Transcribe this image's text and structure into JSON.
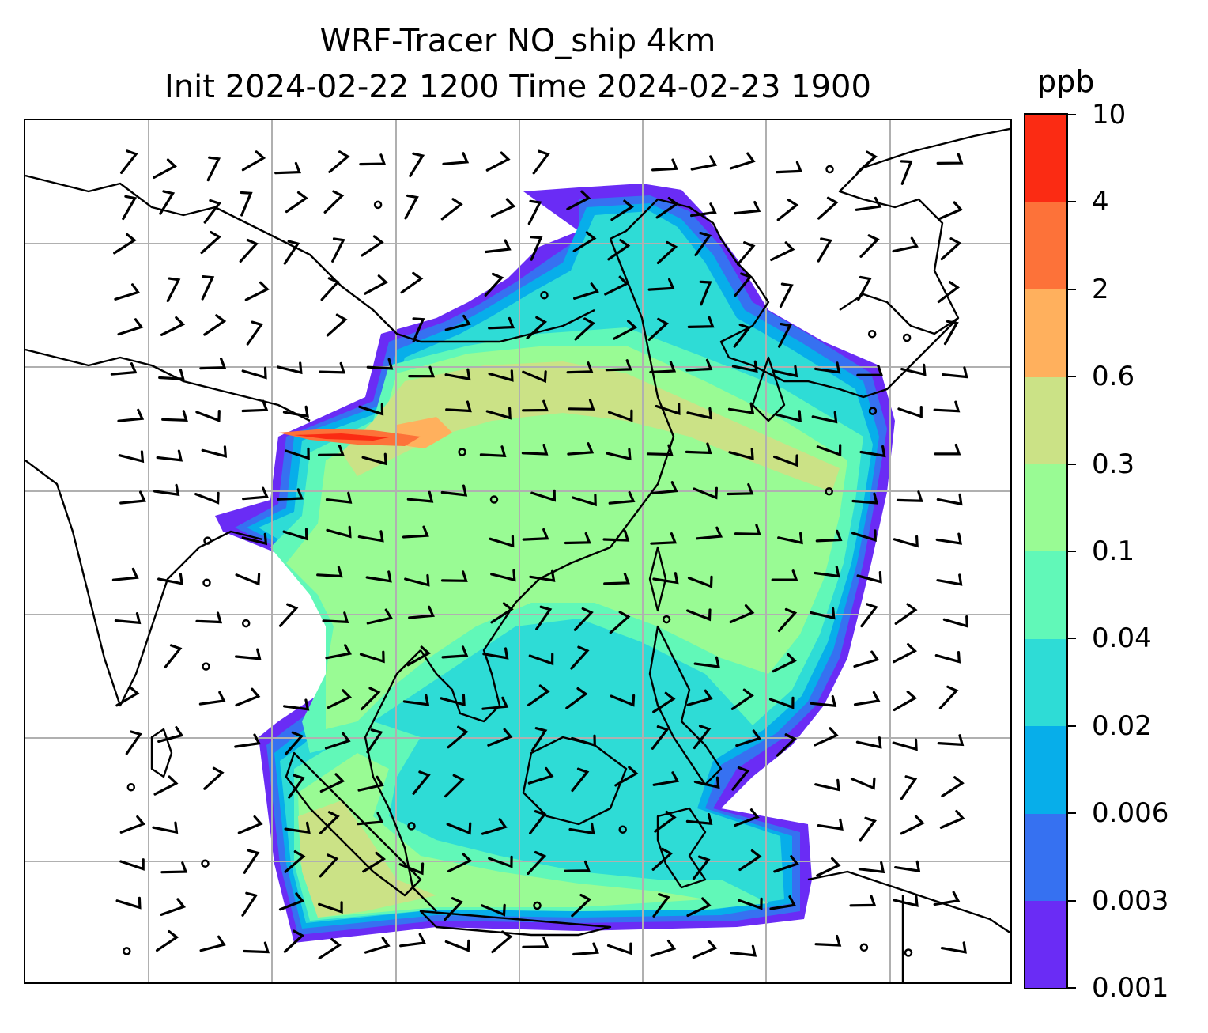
{
  "figure": {
    "title_line1": "WRF-Tracer NO_ship 4km",
    "title_line2": "Init 2024-02-22 1200 Time 2024-02-23 1900"
  },
  "colorbar": {
    "unit": "ppb",
    "levels": [
      "0.001",
      "0.003",
      "0.006",
      "0.02",
      "0.04",
      "0.1",
      "0.3",
      "0.6",
      "2",
      "4",
      "10"
    ],
    "colors": [
      "#6a2cf5",
      "#3671f1",
      "#07aeea",
      "#2edcd6",
      "#61f8b8",
      "#99fb94",
      "#cbe286",
      "#ffb05d",
      "#fd7239",
      "#fb2b13"
    ]
  },
  "map": {
    "projection_grid": "on",
    "gridline_color": "#b0b0b0",
    "coastline_color": "#000000",
    "field": "NO_ship tracer concentration",
    "wind_symbols": "barbs"
  }
}
